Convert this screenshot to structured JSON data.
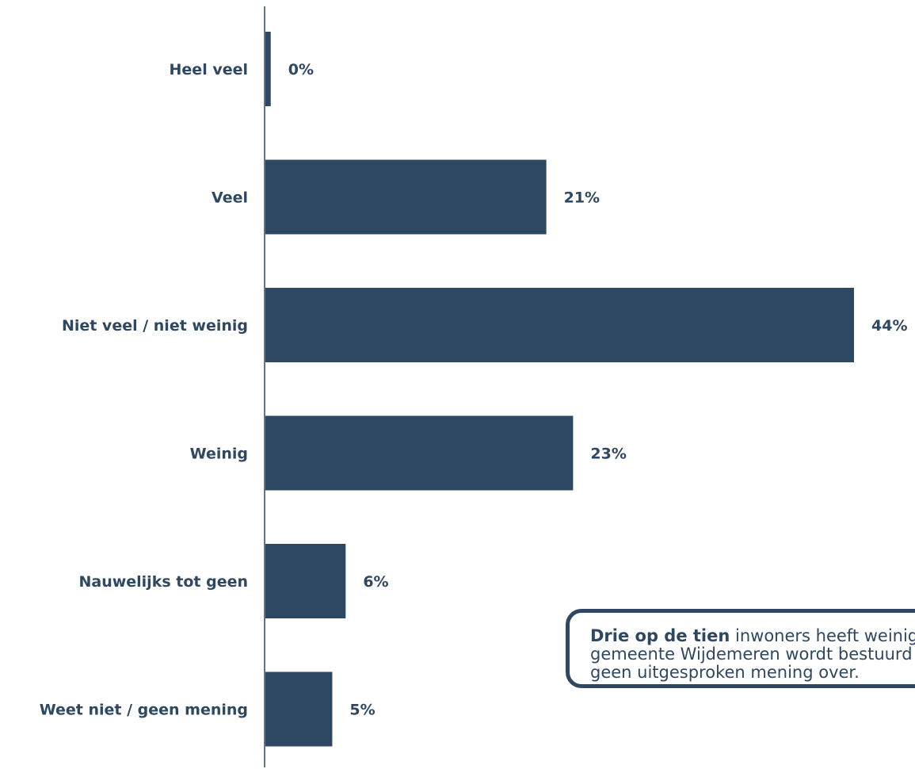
{
  "colors": {
    "bar": "#2e4762",
    "text": "#2e4762",
    "axis": "#2e4762"
  },
  "chart_data": {
    "type": "bar",
    "orientation": "horizontal",
    "categories": [
      "Heel veel",
      "Veel",
      "Niet veel / niet weinig",
      "Weinig",
      "Nauwelijks tot geen",
      "Weet niet / geen mening"
    ],
    "values": [
      0.4,
      21,
      44,
      23,
      6,
      5
    ],
    "value_labels": [
      "0%",
      "21%",
      "44%",
      "23%",
      "6%",
      "5%"
    ],
    "xlim": [
      0,
      50
    ],
    "grid": false,
    "legend": "none"
  },
  "callout": {
    "bold_text": "Drie op de tien",
    "line1_rest": " inwoners heeft weinig of nauwelijks vertrouwen dat de",
    "line2": "gemeente Wijdemeren wordt bestuurd op een goede manier, een op de twintig heeft",
    "line3": "geen uitgesproken mening over."
  }
}
